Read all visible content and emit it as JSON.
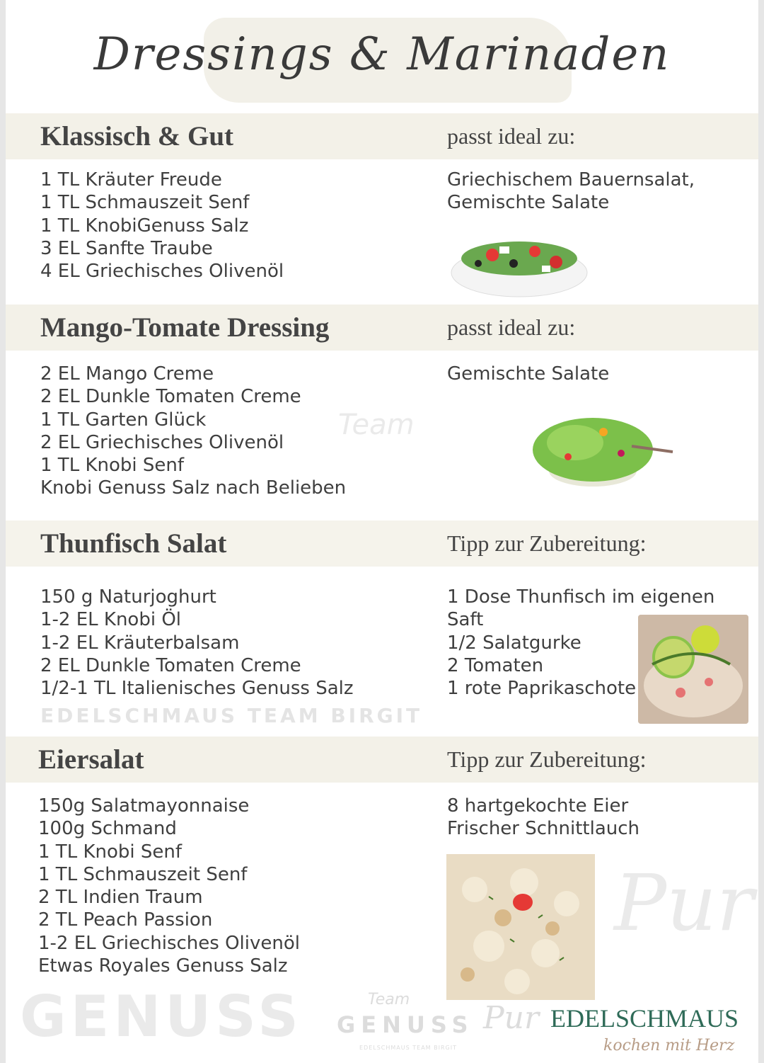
{
  "title": "Dressings & Marinaden",
  "sections": [
    {
      "heading": "Klassisch & Gut",
      "right_heading": "passt ideal zu:",
      "ingredients": [
        "1 TL Kräuter Freude",
        "1 TL Schmauszeit Senf",
        "1 TL KnobiGenuss Salz",
        "3 EL Sanfte Traube",
        "4 EL Griechisches Olivenöl"
      ],
      "right_lines": [
        "Griechischem Bauernsalat,",
        "Gemischte Salate"
      ]
    },
    {
      "heading": "Mango-Tomate Dressing",
      "right_heading": "passt ideal zu:",
      "ingredients": [
        "2 EL Mango Creme",
        "2 EL Dunkle Tomaten Creme",
        "1 TL Garten Glück",
        "2 EL Griechisches Olivenöl",
        "1 TL Knobi Senf",
        "Knobi Genuss Salz nach Belieben"
      ],
      "right_lines": [
        "Gemischte Salate"
      ]
    },
    {
      "heading": "Thunfisch Salat",
      "right_heading": "Tipp zur Zubereitung:",
      "ingredients": [
        "150 g Naturjoghurt",
        "1-2 EL Knobi Öl",
        "1-2 EL Kräuterbalsam",
        "2 EL Dunkle Tomaten Creme",
        "1/2-1 TL Italienisches Genuss Salz"
      ],
      "right_lines": [
        "1 Dose Thunfisch im eigenen",
        "Saft",
        "1/2 Salatgurke",
        "2 Tomaten",
        "1 rote Paprikaschote"
      ]
    },
    {
      "heading": "Eiersalat",
      "right_heading": "Tipp zur Zubereitung:",
      "ingredients": [
        "150g Salatmayonnaise",
        "100g Schmand",
        "1 TL Knobi Senf",
        "1 TL Schmauszeit Senf",
        "2 TL Indien Traum",
        "2 TL Peach Passion",
        "1-2 EL Griechisches Olivenöl",
        "Etwas Royales Genuss Salz"
      ],
      "right_lines": [
        "8 hartgekochte Eier",
        "Frischer Schnittlauch"
      ]
    }
  ],
  "watermark": {
    "team": "Team",
    "genuss": "GENUSS",
    "pur": "Pur",
    "sub": "EDELSCHMAUS TEAM BIRGIT"
  },
  "footer": {
    "genuss": "GENUSS",
    "pur": "Pur",
    "brand": "EDELSCHMAUS",
    "tagline": "kochen mit Herz"
  },
  "colors": {
    "band": "#f3f1e8",
    "brand": "#2f6b58",
    "tagline": "#b79c86"
  }
}
